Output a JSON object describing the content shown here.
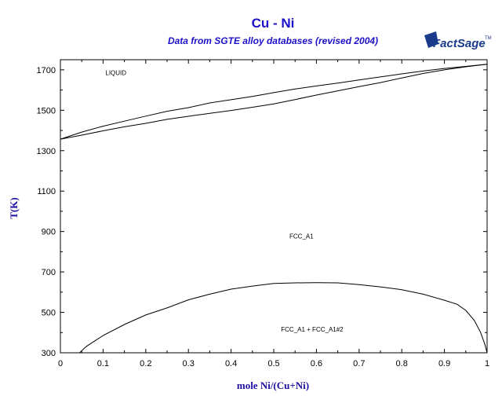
{
  "chart_data": {
    "type": "line",
    "title": "Cu - Ni",
    "subtitle": "Data from SGTE alloy databases (revised 2004)",
    "xlabel": "mole Ni/(Cu+Ni)",
    "ylabel": "T(K)",
    "xlim": [
      0,
      1
    ],
    "ylim": [
      300,
      1750
    ],
    "xticks": [
      "0",
      "0.1",
      "0.2",
      "0.3",
      "0.4",
      "0.5",
      "0.6",
      "0.7",
      "0.8",
      "0.9",
      "1"
    ],
    "yticks": [
      "300",
      "500",
      "700",
      "900",
      "1100",
      "1300",
      "1500",
      "1700"
    ],
    "grid": false,
    "region_labels": [
      {
        "text": "LIQUID",
        "x": 0.13,
        "y": 1675
      },
      {
        "text": "FCC_A1",
        "x": 0.565,
        "y": 865
      },
      {
        "text": "FCC_A1 + FCC_A1#2",
        "x": 0.59,
        "y": 405
      }
    ],
    "series": [
      {
        "x": [
          0,
          0.05,
          0.1,
          0.15,
          0.2,
          0.25,
          0.3,
          0.35,
          0.4,
          0.45,
          0.5,
          0.55,
          0.6,
          0.65,
          0.7,
          0.75,
          0.8,
          0.85,
          0.9,
          0.95,
          1.0
        ],
        "y": [
          1357,
          1392,
          1421,
          1446,
          1471,
          1495,
          1513,
          1536,
          1552,
          1568,
          1587,
          1605,
          1620,
          1634,
          1650,
          1665,
          1680,
          1694,
          1707,
          1717,
          1728
        ]
      },
      {
        "x": [
          0,
          0.05,
          0.1,
          0.15,
          0.2,
          0.25,
          0.3,
          0.35,
          0.4,
          0.45,
          0.5,
          0.55,
          0.6,
          0.65,
          0.7,
          0.75,
          0.8,
          0.85,
          0.9,
          0.95,
          1.0
        ],
        "y": [
          1357,
          1377,
          1398,
          1418,
          1435,
          1455,
          1470,
          1485,
          1499,
          1515,
          1531,
          1553,
          1575,
          1596,
          1617,
          1637,
          1660,
          1682,
          1700,
          1715,
          1728
        ]
      },
      {
        "x": [
          0.045,
          0.06,
          0.08,
          0.1,
          0.15,
          0.2,
          0.25,
          0.3,
          0.35,
          0.4,
          0.45,
          0.5,
          0.55,
          0.6,
          0.65,
          0.7,
          0.75,
          0.8,
          0.85,
          0.9,
          0.93,
          0.95,
          0.97,
          0.985,
          0.995,
          1.0
        ],
        "y": [
          300,
          330,
          358,
          385,
          440,
          487,
          522,
          562,
          590,
          615,
          630,
          643,
          646,
          647,
          646,
          637,
          626,
          612,
          590,
          560,
          540,
          510,
          460,
          400,
          340,
          300
        ]
      }
    ]
  },
  "logo": {
    "text": "FactSage",
    "mark": "TM"
  },
  "colors": {
    "title": "#1c10c8",
    "axis_label": "#1c10a0",
    "curve": "#000000",
    "logo": "#1a3a8c"
  }
}
